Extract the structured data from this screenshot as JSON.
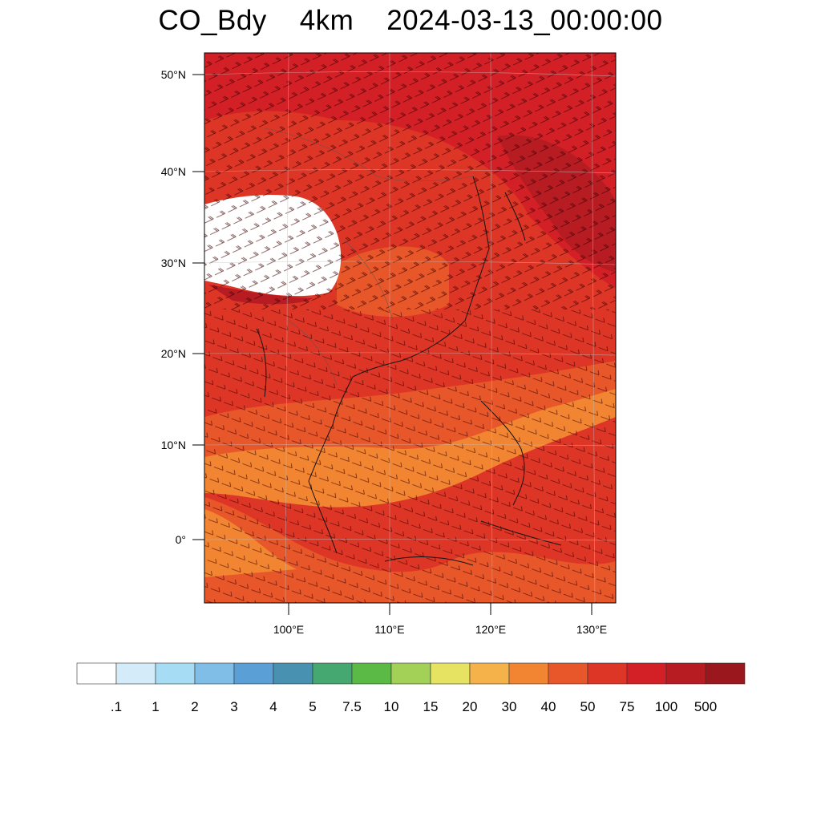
{
  "title": "CO_Bdy    4km    2024-03-13_00:00:00",
  "map": {
    "lat_labels": [
      "50°N",
      "40°N",
      "30°N",
      "20°N",
      "10°N",
      "0°"
    ],
    "lon_labels": [
      "100°E",
      "110°E",
      "120°E",
      "130°E"
    ],
    "lon_range": [
      92,
      132
    ],
    "lat_range": [
      -7,
      52
    ]
  },
  "colorbar": {
    "colors": [
      "#ffffff",
      "#d4ecfa",
      "#a6dcf4",
      "#80bde7",
      "#5a9fd6",
      "#4891b0",
      "#45a870",
      "#5bba46",
      "#a3d057",
      "#e6e262",
      "#f5b24a",
      "#f28532",
      "#e8572a",
      "#de3626",
      "#d32027",
      "#b71c23",
      "#9a181d"
    ],
    "labels": [
      ".1",
      "1",
      "2",
      "3",
      "4",
      "5",
      "7.5",
      "10",
      "15",
      "20",
      "30",
      "40",
      "50",
      "75",
      "100",
      "500"
    ]
  }
}
